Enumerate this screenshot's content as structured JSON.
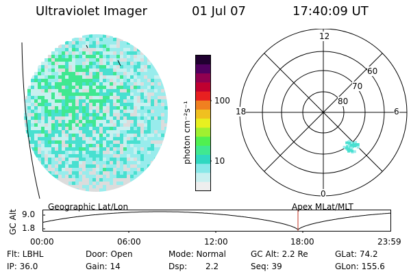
{
  "header": {
    "title": "Ultraviolet Imager",
    "date": "01 Jul 07",
    "time": "17:40:09 UT"
  },
  "colorbar": {
    "unit_label": "photon cm⁻²s⁻¹",
    "ticks": [
      "100",
      "10"
    ],
    "colors": [
      "#eeeeee",
      "#c8f0f0",
      "#88e8e8",
      "#30d8c0",
      "#40e890",
      "#50f050",
      "#a0f030",
      "#e8f020",
      "#f0c020",
      "#f08020",
      "#e82020",
      "#c00030",
      "#900050",
      "#500060",
      "#200030"
    ]
  },
  "polar": {
    "mlt_labels": {
      "top": "12",
      "left": "18",
      "right": "6",
      "bottom": "0"
    },
    "lat_labels": [
      "60",
      "70",
      "80"
    ]
  },
  "alt_plot": {
    "left_title": "Geographic Lat/Lon",
    "right_title": "Apex MLat/MLT",
    "ylabel": "GC Alt",
    "yticks": [
      "9.0",
      "1.8"
    ],
    "xticks": [
      "00:00",
      "06:00",
      "12:00",
      "18:00",
      "23:59"
    ],
    "marker_color": "#c03020"
  },
  "info": {
    "filter": "Flt: LBHL",
    "ip": "IP: 36.0",
    "door": "Door: Open",
    "gain": "Gain: 14",
    "mode": "Mode: Normal",
    "dsp_label": "Dsp:",
    "dsp_value": "2.2",
    "gc_alt": "GC Alt: 2.2 Re",
    "seq": "Seq: 39",
    "glat": "GLat: 74.2",
    "glon": "GLon: 155.6"
  }
}
